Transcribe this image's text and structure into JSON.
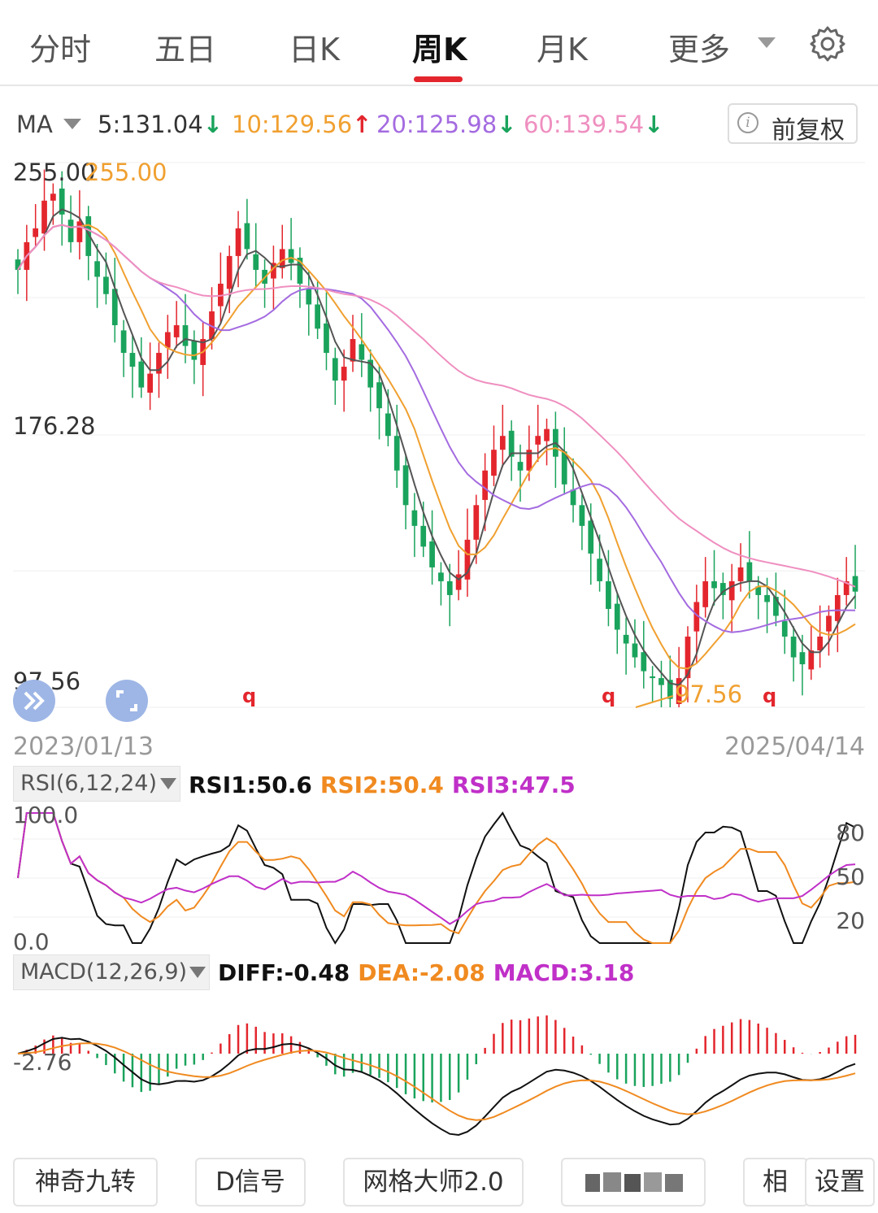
{
  "tabs": [
    {
      "label": "分时"
    },
    {
      "label": "五日"
    },
    {
      "label": "日K"
    },
    {
      "label": "周K"
    },
    {
      "label": "月K"
    },
    {
      "label": "更多"
    }
  ],
  "ma_bar": {
    "selector": "MA",
    "items": [
      {
        "label": "5:131.04",
        "arrow": "↓",
        "color": "#333333"
      },
      {
        "label": "10:129.56",
        "arrow": "↑",
        "color": "#f0a030"
      },
      {
        "label": "20:125.98",
        "arrow": "↓",
        "color": "#a46be0"
      },
      {
        "label": "60:139.54",
        "arrow": "↓",
        "color": "#ef8fc0"
      }
    ],
    "adjust_button": "前复权"
  },
  "main_chart": {
    "y_labels": {
      "top": "255.00",
      "mid": "176.28",
      "bottom": "97.56"
    },
    "max_marker": "255.00",
    "min_marker": "97.56",
    "date_start": "2023/01/13",
    "date_end": "2025/04/14",
    "signal_marks": [
      "q",
      "q",
      "q"
    ]
  },
  "rsi": {
    "selector": "RSI(6,12,24)",
    "values": [
      {
        "label": "RSI1:50.6",
        "color": "#111111"
      },
      {
        "label": "RSI2:50.4",
        "color": "#f08a20"
      },
      {
        "label": "RSI3:47.5",
        "color": "#c030c8"
      }
    ],
    "y_top": "100.0",
    "y_bottom": "0.0",
    "y_right": [
      "80",
      "50",
      "20"
    ]
  },
  "macd": {
    "selector": "MACD(12,26,9)",
    "values": [
      {
        "label": "DIFF:-0.48",
        "color": "#111111"
      },
      {
        "label": "DEA:-2.08",
        "color": "#f08a20"
      },
      {
        "label": "MACD:3.18",
        "color": "#c030c8"
      }
    ],
    "y_label": "-2.76"
  },
  "bottom_buttons": [
    {
      "label": "神奇九转"
    },
    {
      "label": "D信号"
    },
    {
      "label": "网格大师2.0"
    },
    {
      "label": "相"
    },
    {
      "label": "设置"
    }
  ],
  "colors": {
    "up": "#e3262d",
    "down": "#1aa35c",
    "accent": "#e3262d"
  },
  "chart_data": {
    "type": "candlestick",
    "period": "weekly",
    "x_range": [
      "2023/01/13",
      "2025/04/14"
    ],
    "ylim": [
      97.56,
      255.0
    ],
    "price_high": 255.0,
    "price_low": 97.56,
    "ma": {
      "MA5": 131.04,
      "MA10": 129.56,
      "MA20": 125.98,
      "MA60": 139.54
    },
    "close_approx": [
      224,
      232,
      236,
      244,
      246,
      240,
      232,
      238,
      228,
      222,
      217,
      208,
      200,
      196,
      190,
      194,
      200,
      206,
      208,
      202,
      198,
      204,
      212,
      220,
      228,
      236,
      230,
      224,
      220,
      226,
      230,
      226,
      220,
      214,
      207,
      200,
      192,
      196,
      204,
      198,
      190,
      184,
      176,
      166,
      156,
      150,
      144,
      138,
      134,
      130,
      136,
      146,
      156,
      166,
      172,
      176,
      170,
      166,
      172,
      176,
      178,
      170,
      162,
      156,
      150,
      142,
      134,
      126,
      120,
      116,
      112,
      108,
      106,
      104,
      100,
      106,
      118,
      128,
      134,
      132,
      130,
      134,
      138,
      134,
      130,
      128,
      124,
      118,
      112,
      110,
      114,
      118,
      124,
      130,
      134,
      131
    ]
  }
}
